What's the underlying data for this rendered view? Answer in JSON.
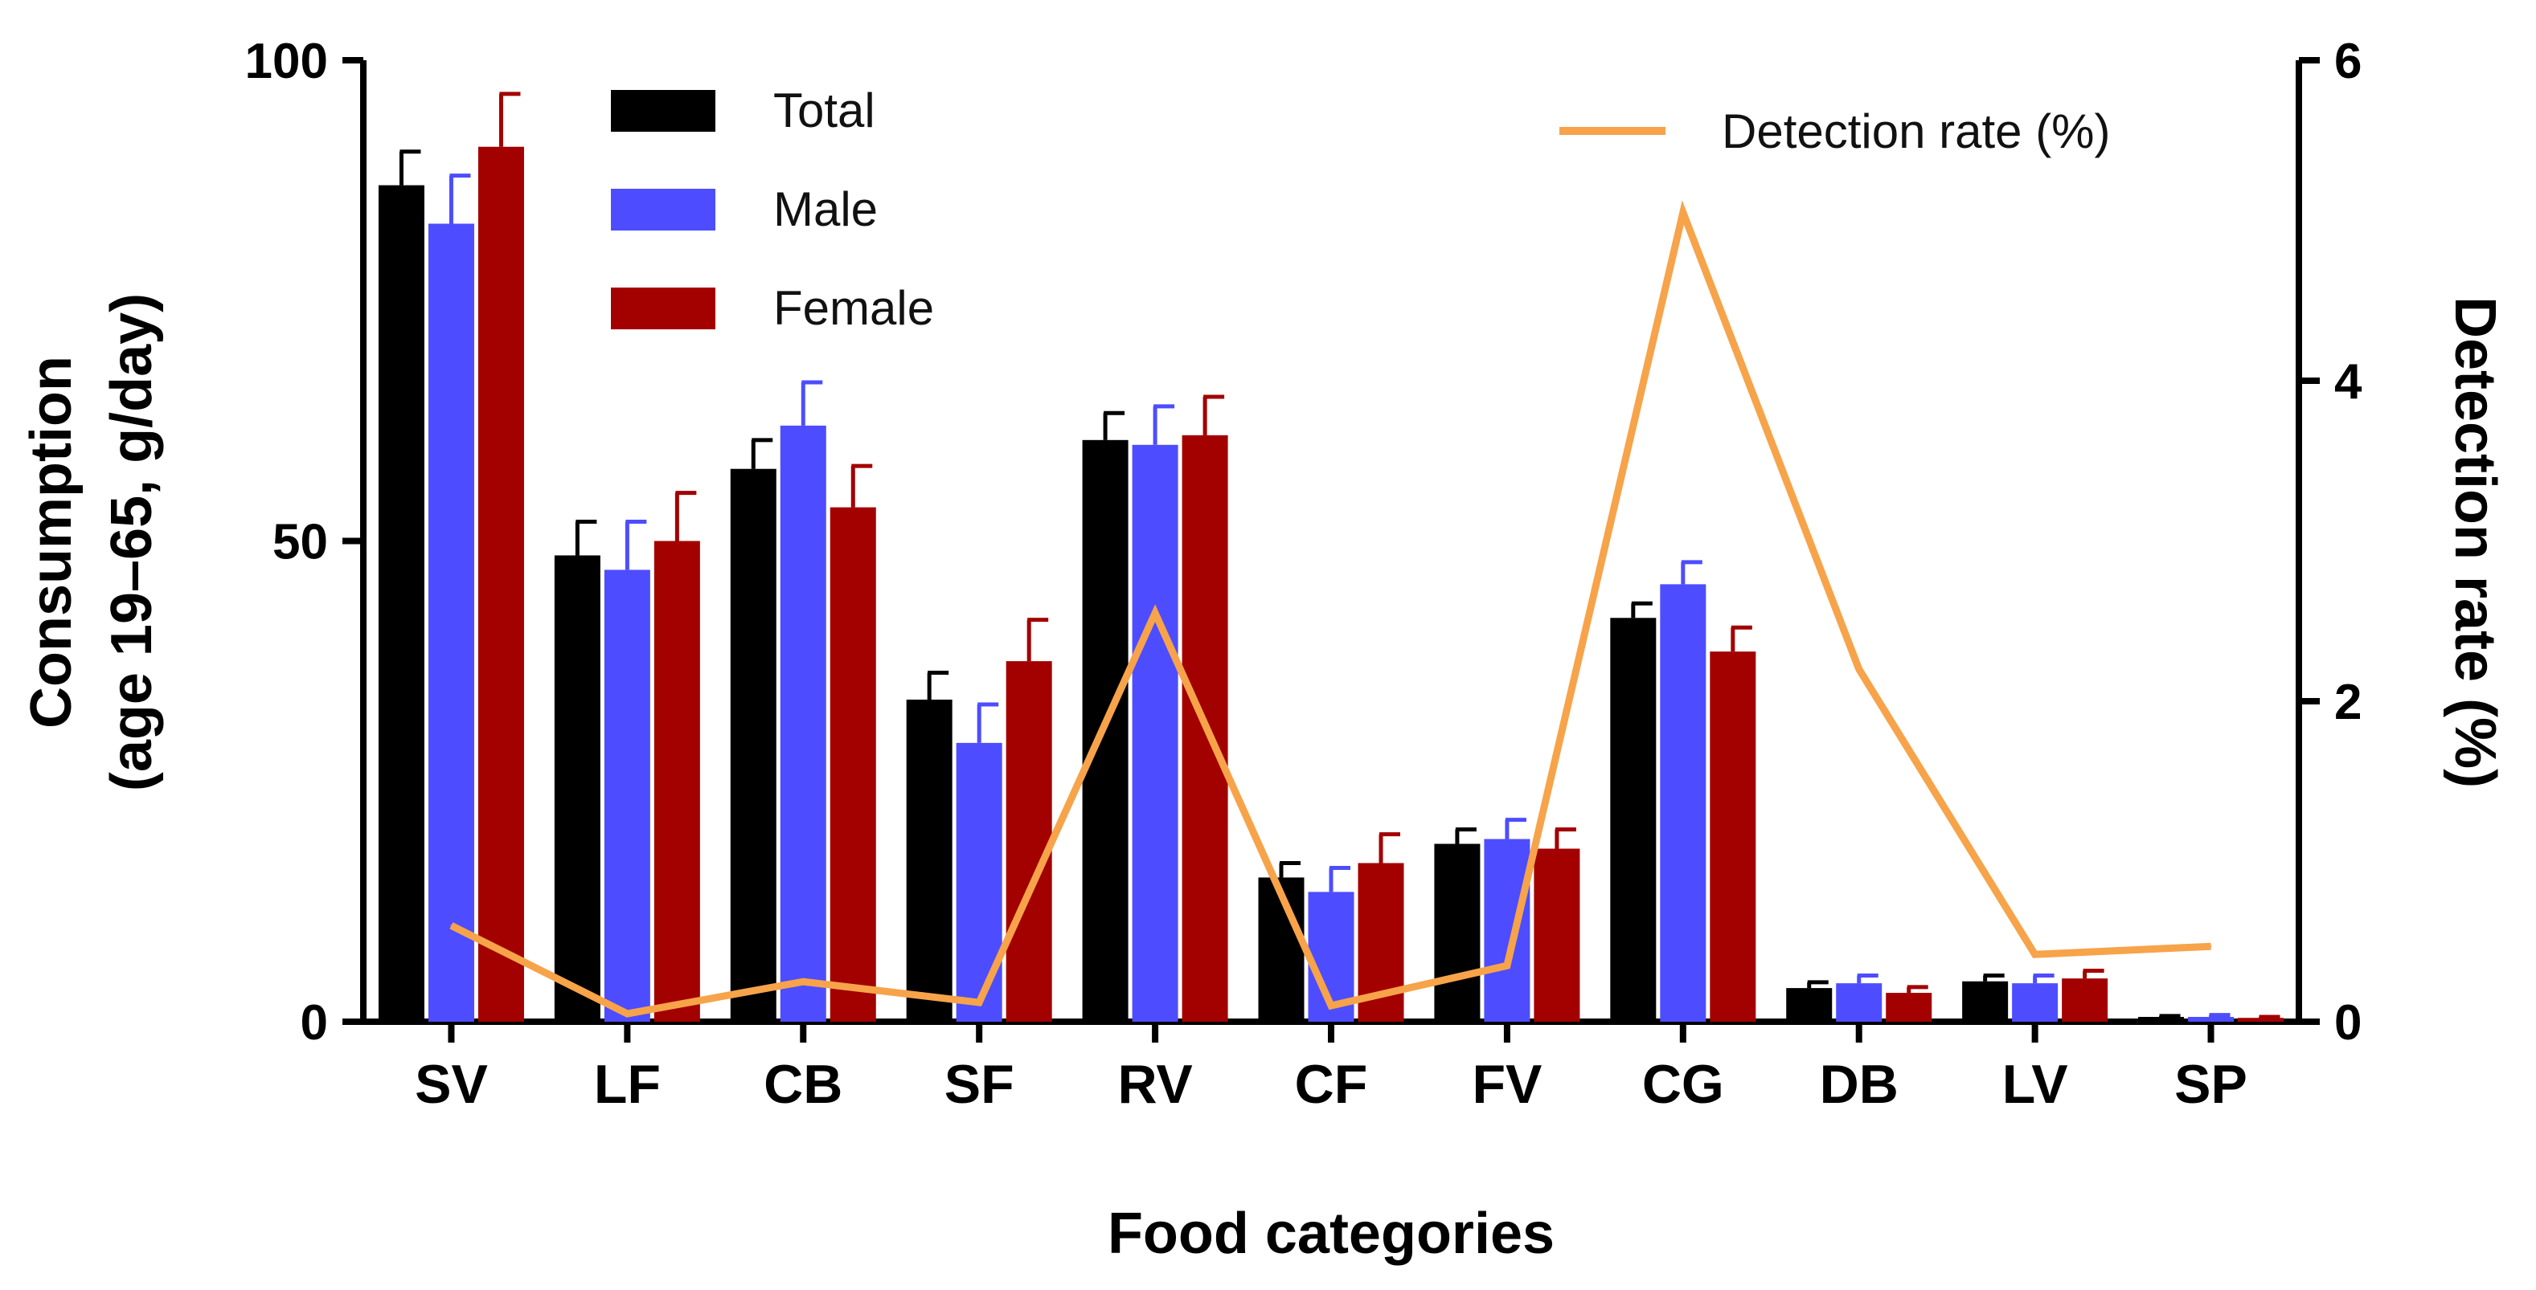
{
  "chart_data": {
    "type": "bar",
    "categories": [
      "SV",
      "LF",
      "CB",
      "SF",
      "RV",
      "CF",
      "FV",
      "CG",
      "DB",
      "LV",
      "SP"
    ],
    "series": [
      {
        "name": "Total",
        "color": "#000000",
        "values": [
          87,
          48.5,
          57.5,
          33.5,
          60.5,
          15,
          18.5,
          42,
          3.5,
          4.2,
          0.5
        ],
        "errors": [
          3.5,
          3.5,
          3.0,
          2.8,
          2.8,
          1.5,
          1.5,
          1.5,
          0.6,
          0.6,
          0.1
        ]
      },
      {
        "name": "Male",
        "color": "#4d4dff",
        "values": [
          83,
          47,
          62,
          29,
          60,
          13.5,
          19,
          45.5,
          4.0,
          4.0,
          0.5
        ],
        "errors": [
          5.0,
          5.0,
          4.5,
          4.0,
          4.0,
          2.5,
          2.0,
          2.3,
          0.8,
          0.8,
          0.2
        ]
      },
      {
        "name": "Female",
        "color": "#a30000",
        "values": [
          91,
          50,
          53.5,
          37.5,
          61,
          16.5,
          18,
          38.5,
          3.0,
          4.5,
          0.4
        ],
        "errors": [
          5.5,
          5.0,
          4.3,
          4.3,
          4.0,
          3.0,
          2.0,
          2.5,
          0.6,
          0.8,
          0.1
        ]
      }
    ],
    "secondary_series": {
      "name": "Detection rate (%)",
      "type": "line",
      "axis": "right",
      "color": "#f7a34a",
      "values": [
        0.6,
        0.05,
        0.25,
        0.12,
        2.55,
        0.1,
        0.35,
        5.05,
        2.2,
        0.42,
        0.47
      ]
    },
    "title": "",
    "xlabel": "Food categories",
    "ylabel_line1": "Consumption",
    "ylabel_line2": "(age 19–65, g/day)",
    "y2label": "Detection rate (%)",
    "ylim": [
      0,
      100
    ],
    "y2lim": [
      0,
      6
    ],
    "yticks": [
      0,
      50,
      100
    ],
    "y2ticks": [
      0,
      2,
      4,
      6
    ],
    "legend_position": "top-left",
    "legend2_position": "top-right",
    "grid": false
  }
}
